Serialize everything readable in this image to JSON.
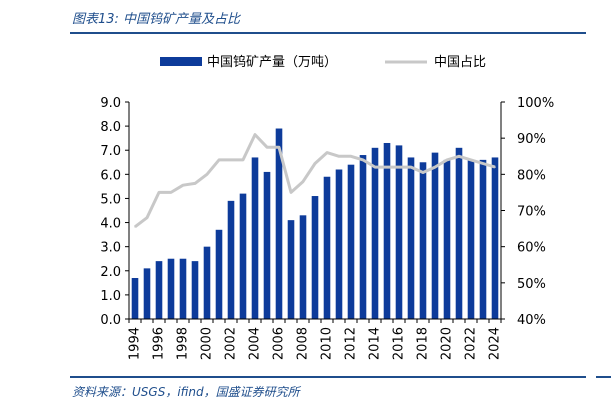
{
  "header": {
    "title": "图表13:  中国钨矿产量及占比"
  },
  "footer": {
    "source": "资料来源：USGS，ifind，国盛证券研究所"
  },
  "colors": {
    "bar": "#0d3b9a",
    "line": "#c8c8c8",
    "accent": "#1f4e8c"
  },
  "chart_data": {
    "type": "bar",
    "title": "",
    "legend_position": "top",
    "grid": false,
    "x": [
      "1994",
      "1995",
      "1996",
      "1997",
      "1998",
      "1999",
      "2000",
      "2001",
      "2002",
      "2003",
      "2004",
      "2005",
      "2006",
      "2007",
      "2008",
      "2009",
      "2010",
      "2011",
      "2012",
      "2013",
      "2014",
      "2015",
      "2016",
      "2017",
      "2018",
      "2019",
      "2020",
      "2021",
      "2022",
      "2023",
      "2024"
    ],
    "x_tick_labels": [
      "1994",
      "1996",
      "1998",
      "2000",
      "2002",
      "2004",
      "2006",
      "2008",
      "2010",
      "2012",
      "2014",
      "2016",
      "2018",
      "2020",
      "2022",
      "2024"
    ],
    "y_left": {
      "ylim": [
        0,
        9
      ],
      "ticks": [
        "0.0",
        "1.0",
        "2.0",
        "3.0",
        "4.0",
        "5.0",
        "6.0",
        "7.0",
        "8.0",
        "9.0"
      ]
    },
    "y_right": {
      "ylim": [
        40,
        100
      ],
      "ticks": [
        "40%",
        "50%",
        "60%",
        "70%",
        "80%",
        "90%",
        "100%"
      ]
    },
    "series": [
      {
        "name": "中国钨矿产量（万吨）",
        "type": "bar",
        "axis": "left",
        "values": [
          1.7,
          2.1,
          2.4,
          2.5,
          2.5,
          2.4,
          3.0,
          3.7,
          4.9,
          5.2,
          6.7,
          6.1,
          7.9,
          4.1,
          4.3,
          5.1,
          5.9,
          6.2,
          6.4,
          6.8,
          7.1,
          7.3,
          7.2,
          6.7,
          6.5,
          6.9,
          6.6,
          7.1,
          6.6,
          6.6,
          6.7
        ]
      },
      {
        "name": "中国占比",
        "type": "line",
        "axis": "right",
        "values": [
          65.5,
          68,
          75,
          75,
          77,
          77.5,
          80,
          84,
          84,
          84,
          91,
          87.5,
          87.5,
          75,
          78,
          83,
          86,
          85,
          85,
          84,
          82,
          82,
          82,
          82,
          80.5,
          82,
          84,
          85,
          84,
          83,
          82
        ]
      }
    ]
  }
}
